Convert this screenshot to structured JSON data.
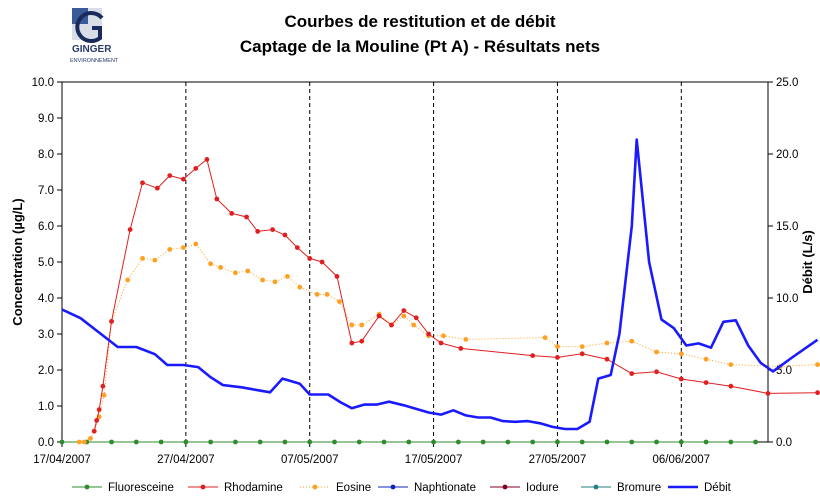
{
  "header": {
    "logo_text_1": "GINGER",
    "logo_text_2": "ENVIRONNEMENT",
    "title_line1": "Courbes de restitution et de débit",
    "title_line2": "Captage de la Mouline (Pt A) - Résultats nets"
  },
  "chart_data": {
    "type": "line",
    "ylabel": "Concentration (µg/L)",
    "y2label": "Débit (L/s)",
    "ylim": [
      0,
      10
    ],
    "y2lim": [
      0,
      25
    ],
    "yticks": [
      "0.0",
      "1.0",
      "2.0",
      "3.0",
      "4.0",
      "5.0",
      "6.0",
      "7.0",
      "8.0",
      "9.0",
      "10.0"
    ],
    "y2ticks": [
      "0.0",
      "5.0",
      "10.0",
      "15.0",
      "20.0",
      "25.0"
    ],
    "xlim": [
      "2007-04-17",
      "2007-06-13"
    ],
    "xticks": [
      "17/04/2007",
      "27/04/2007",
      "07/05/2007",
      "17/05/2007",
      "27/05/2007",
      "06/06/2007"
    ],
    "grid": "vertical dashed at x ticks",
    "legend_position": "bottom",
    "series": [
      {
        "name": "Fluoresceine",
        "axis": "left",
        "color": "#2e8b2e",
        "style": "line-markers",
        "points": [
          [
            "2007-04-17",
            0
          ],
          [
            "2007-04-19",
            0
          ],
          [
            "2007-04-21",
            0
          ],
          [
            "2007-04-23",
            0
          ],
          [
            "2007-04-25",
            0
          ],
          [
            "2007-04-27",
            0
          ],
          [
            "2007-04-29",
            0
          ],
          [
            "2007-05-01",
            0
          ],
          [
            "2007-05-03",
            0
          ],
          [
            "2007-05-05",
            0
          ],
          [
            "2007-05-07",
            0
          ],
          [
            "2007-05-09",
            0
          ],
          [
            "2007-05-11",
            0
          ],
          [
            "2007-05-13",
            0
          ],
          [
            "2007-05-15",
            0
          ],
          [
            "2007-05-17",
            0
          ],
          [
            "2007-05-19",
            0
          ],
          [
            "2007-05-21",
            0
          ],
          [
            "2007-05-23",
            0
          ],
          [
            "2007-05-25",
            0
          ],
          [
            "2007-05-27",
            0
          ],
          [
            "2007-05-29",
            0
          ],
          [
            "2007-05-31",
            0
          ],
          [
            "2007-06-02",
            0
          ],
          [
            "2007-06-04",
            0
          ],
          [
            "2007-06-06",
            0
          ],
          [
            "2007-06-08",
            0
          ],
          [
            "2007-06-10",
            0
          ],
          [
            "2007-06-12",
            0
          ]
        ]
      },
      {
        "name": "Rhodamine",
        "axis": "left",
        "color": "#e02020",
        "style": "line-markers",
        "points": [
          [
            "2007-04-19.6",
            0.3
          ],
          [
            "2007-04-19.8",
            0.6
          ],
          [
            "2007-04-20.0",
            0.9
          ],
          [
            "2007-04-20.3",
            1.55
          ],
          [
            "2007-04-21",
            3.35
          ],
          [
            "2007-04-22.5",
            5.9
          ],
          [
            "2007-04-23.5",
            7.2
          ],
          [
            "2007-04-24.7",
            7.05
          ],
          [
            "2007-04-25.7",
            7.4
          ],
          [
            "2007-04-26.8",
            7.3
          ],
          [
            "2007-04-27.8",
            7.6
          ],
          [
            "2007-04-28.7",
            7.85
          ],
          [
            "2007-04-29.5",
            6.75
          ],
          [
            "2007-04-30.7",
            6.35
          ],
          [
            "2007-05-01.9",
            6.25
          ],
          [
            "2007-05-02.8",
            5.85
          ],
          [
            "2007-05-04",
            5.9
          ],
          [
            "2007-05-05",
            5.75
          ],
          [
            "2007-05-06",
            5.4
          ],
          [
            "2007-05-07",
            5.1
          ],
          [
            "2007-05-08",
            5.0
          ],
          [
            "2007-05-09.2",
            4.6
          ],
          [
            "2007-05-10.4",
            2.75
          ],
          [
            "2007-05-11.2",
            2.8
          ],
          [
            "2007-05-12.6",
            3.5
          ],
          [
            "2007-05-13.6",
            3.25
          ],
          [
            "2007-05-14.6",
            3.65
          ],
          [
            "2007-05-15.6",
            3.45
          ],
          [
            "2007-05-16.6",
            3.0
          ],
          [
            "2007-05-17.6",
            2.75
          ],
          [
            "2007-05-19.2",
            2.6
          ],
          [
            "2007-05-25",
            2.4
          ],
          [
            "2007-05-27",
            2.35
          ],
          [
            "2007-05-29",
            2.45
          ],
          [
            "2007-05-31",
            2.3
          ],
          [
            "2007-06-02",
            1.9
          ],
          [
            "2007-06-04",
            1.95
          ],
          [
            "2007-06-06",
            1.75
          ],
          [
            "2007-06-08",
            1.65
          ],
          [
            "2007-06-10",
            1.55
          ],
          [
            "2007-06-13",
            1.35
          ],
          [
            "2007-06-17",
            1.37
          ]
        ]
      },
      {
        "name": "Eosine",
        "axis": "left",
        "color": "#ffa020",
        "style": "dotted-markers",
        "points": [
          [
            "2007-04-18.4",
            0
          ],
          [
            "2007-04-18.8",
            0
          ],
          [
            "2007-04-19.3",
            0.1
          ],
          [
            "2007-04-19.6",
            0.3
          ],
          [
            "2007-04-20",
            0.7
          ],
          [
            "2007-04-20.4",
            1.3
          ],
          [
            "2007-04-21",
            3.35
          ],
          [
            "2007-04-22.3",
            4.5
          ],
          [
            "2007-04-23.5",
            5.1
          ],
          [
            "2007-04-24.5",
            5.05
          ],
          [
            "2007-04-25.7",
            5.35
          ],
          [
            "2007-04-26.8",
            5.4
          ],
          [
            "2007-04-27.8",
            5.5
          ],
          [
            "2007-04-29",
            4.95
          ],
          [
            "2007-04-29.8",
            4.85
          ],
          [
            "2007-05-01",
            4.7
          ],
          [
            "2007-05-02",
            4.75
          ],
          [
            "2007-05-03.2",
            4.5
          ],
          [
            "2007-05-04.2",
            4.45
          ],
          [
            "2007-05-05.2",
            4.6
          ],
          [
            "2007-05-06.2",
            4.3
          ],
          [
            "2007-05-07.6",
            4.1
          ],
          [
            "2007-05-08.4",
            4.1
          ],
          [
            "2007-05-09.4",
            3.9
          ],
          [
            "2007-05-10.4",
            3.25
          ],
          [
            "2007-05-11.2",
            3.25
          ],
          [
            "2007-05-12.6",
            3.55
          ],
          [
            "2007-05-13.6",
            3.25
          ],
          [
            "2007-05-14.6",
            3.5
          ],
          [
            "2007-05-15.4",
            3.25
          ],
          [
            "2007-05-16.6",
            2.95
          ],
          [
            "2007-05-17.8",
            2.95
          ],
          [
            "2007-05-19.6",
            2.85
          ],
          [
            "2007-05-26",
            2.9
          ],
          [
            "2007-05-27",
            2.65
          ],
          [
            "2007-05-29",
            2.65
          ],
          [
            "2007-05-31",
            2.75
          ],
          [
            "2007-06-02",
            2.8
          ],
          [
            "2007-06-04",
            2.5
          ],
          [
            "2007-06-06",
            2.45
          ],
          [
            "2007-06-08",
            2.3
          ],
          [
            "2007-06-10",
            2.15
          ],
          [
            "2007-06-14",
            2.1
          ],
          [
            "2007-06-17",
            2.15
          ]
        ]
      },
      {
        "name": "Naphtionate",
        "axis": "left",
        "color": "#1020c0",
        "style": "line-markers",
        "points": []
      },
      {
        "name": "Iodure",
        "axis": "left",
        "color": "#800020",
        "style": "line-markers",
        "points": []
      },
      {
        "name": "Bromure",
        "axis": "left",
        "color": "#208080",
        "style": "line-markers",
        "points": []
      },
      {
        "name": "Débit",
        "axis": "right",
        "color": "#1a1aff",
        "style": "thick-line",
        "points": [
          [
            "2007-04-17",
            9.2
          ],
          [
            "2007-04-18.5",
            8.6
          ],
          [
            "2007-04-20",
            7.6
          ],
          [
            "2007-04-21.5",
            6.6
          ],
          [
            "2007-04-23",
            6.6
          ],
          [
            "2007-04-24.5",
            6.1
          ],
          [
            "2007-04-25.5",
            5.35
          ],
          [
            "2007-04-26.8",
            5.35
          ],
          [
            "2007-04-28",
            5.2
          ],
          [
            "2007-04-29",
            4.5
          ],
          [
            "2007-04-30",
            3.95
          ],
          [
            "2007-05-01.5",
            3.8
          ],
          [
            "2007-05-02.8",
            3.6
          ],
          [
            "2007-05-03.8",
            3.45
          ],
          [
            "2007-05-04.8",
            4.4
          ],
          [
            "2007-05-06.2",
            4.05
          ],
          [
            "2007-05-07",
            3.3
          ],
          [
            "2007-05-08.5",
            3.3
          ],
          [
            "2007-05-09.5",
            2.75
          ],
          [
            "2007-05-10.4",
            2.35
          ],
          [
            "2007-05-11.4",
            2.6
          ],
          [
            "2007-05-12.4",
            2.6
          ],
          [
            "2007-05-13.4",
            2.8
          ],
          [
            "2007-05-14.6",
            2.55
          ],
          [
            "2007-05-15.6",
            2.3
          ],
          [
            "2007-05-16.6",
            2.05
          ],
          [
            "2007-05-17.6",
            1.9
          ],
          [
            "2007-05-18.6",
            2.2
          ],
          [
            "2007-05-19.6",
            1.85
          ],
          [
            "2007-05-20.6",
            1.7
          ],
          [
            "2007-05-21.6",
            1.7
          ],
          [
            "2007-05-22.6",
            1.45
          ],
          [
            "2007-05-23.6",
            1.4
          ],
          [
            "2007-05-24.6",
            1.45
          ],
          [
            "2007-05-25.6",
            1.3
          ],
          [
            "2007-05-26.6",
            1.05
          ],
          [
            "2007-05-27.6",
            0.9
          ],
          [
            "2007-05-28.6",
            0.9
          ],
          [
            "2007-05-29.6",
            1.4
          ],
          [
            "2007-05-30.3",
            4.4
          ],
          [
            "2007-05-31.3",
            4.65
          ],
          [
            "2007-06-01",
            7.5
          ],
          [
            "2007-06-02",
            15.0
          ],
          [
            "2007-06-02.4",
            21.0
          ],
          [
            "2007-06-03.4",
            12.5
          ],
          [
            "2007-06-04.4",
            8.5
          ],
          [
            "2007-06-05.4",
            7.9
          ],
          [
            "2007-06-06.4",
            6.7
          ],
          [
            "2007-06-07.4",
            6.85
          ],
          [
            "2007-06-08.4",
            6.55
          ],
          [
            "2007-06-09.4",
            8.35
          ],
          [
            "2007-06-10.4",
            8.45
          ],
          [
            "2007-06-11.4",
            6.7
          ],
          [
            "2007-06-12.4",
            5.5
          ],
          [
            "2007-06-13.4",
            4.9
          ],
          [
            "2007-06-15",
            5.9
          ],
          [
            "2007-06-17",
            7.1
          ]
        ]
      }
    ]
  }
}
